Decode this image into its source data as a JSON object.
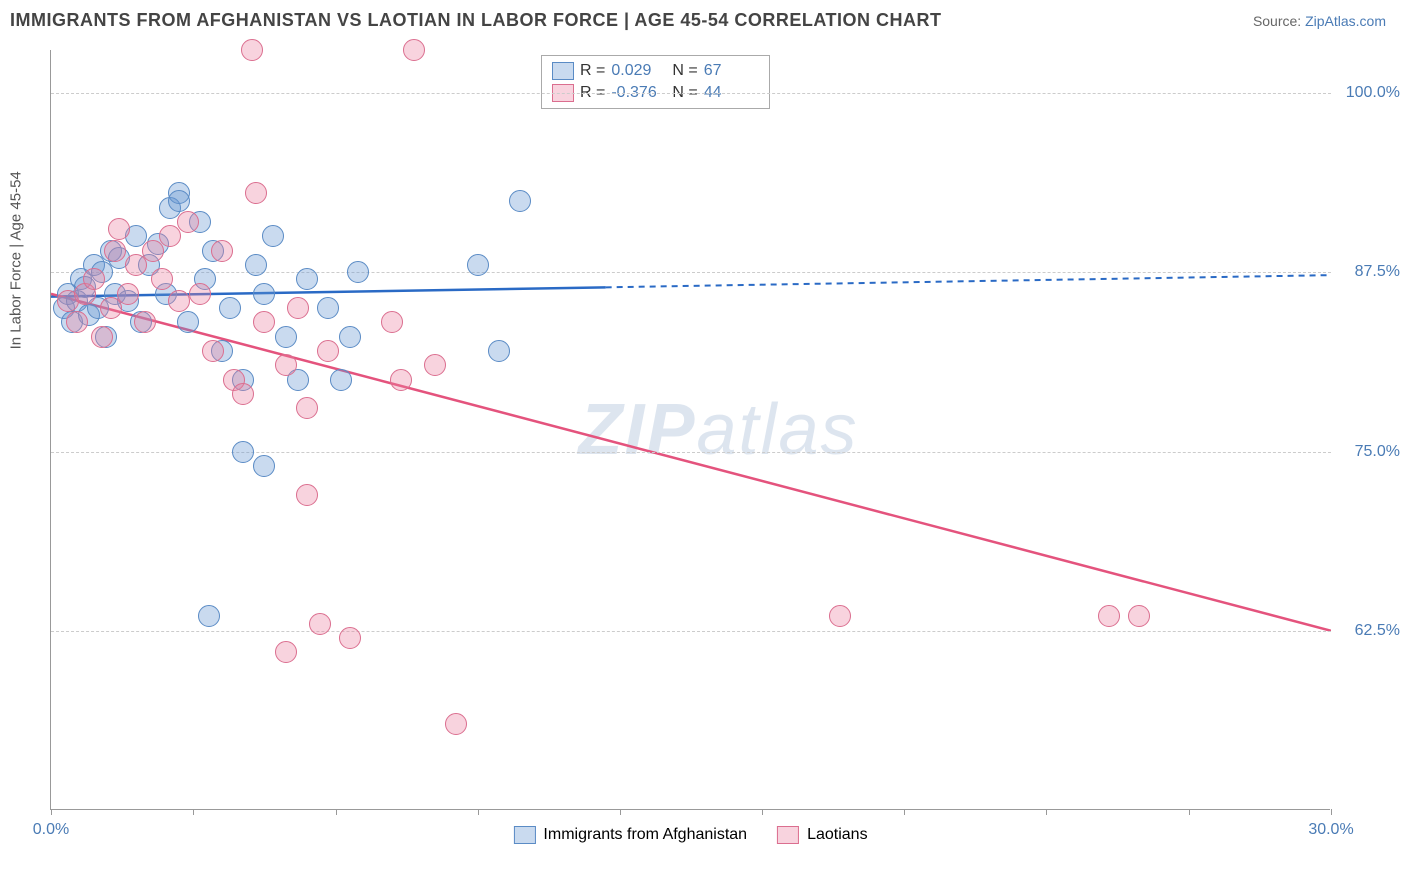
{
  "header": {
    "title": "IMMIGRANTS FROM AFGHANISTAN VS LAOTIAN IN LABOR FORCE | AGE 45-54 CORRELATION CHART",
    "source_prefix": "Source: ",
    "source_link": "ZipAtlas.com"
  },
  "chart": {
    "type": "scatter",
    "xlabel": "",
    "ylabel": "In Labor Force | Age 45-54",
    "watermark_1": "ZIP",
    "watermark_2": "atlas",
    "xlim": [
      0,
      30
    ],
    "ylim": [
      50,
      103
    ],
    "x_ticks": [
      0,
      3.33,
      6.67,
      10,
      13.33,
      16.67,
      20,
      23.33,
      26.67,
      30
    ],
    "x_tick_labels_shown": {
      "0": "0.0%",
      "30": "30.0%"
    },
    "y_gridlines": [
      62.5,
      75,
      87.5,
      100
    ],
    "y_tick_labels": {
      "62.5": "62.5%",
      "75": "75.0%",
      "87.5": "87.5%",
      "100": "100.0%"
    },
    "background_color": "#ffffff",
    "grid_color": "#cccccc",
    "axis_color": "#999999",
    "series": [
      {
        "name": "Immigrants from Afghanistan",
        "fill_color": "rgba(100,150,210,0.35)",
        "stroke_color": "#5a8bc5",
        "line_color": "#2a6ac5",
        "marker_radius": 11,
        "R": "0.029",
        "N": "67",
        "trend": {
          "x1": 0,
          "y1": 85.8,
          "x_solid_end": 13,
          "x2": 30,
          "y2": 87.3
        },
        "points": [
          [
            0.3,
            85
          ],
          [
            0.4,
            86
          ],
          [
            0.5,
            84
          ],
          [
            0.6,
            85.5
          ],
          [
            0.7,
            87
          ],
          [
            0.8,
            86.5
          ],
          [
            0.9,
            84.5
          ],
          [
            1.0,
            88
          ],
          [
            1.1,
            85
          ],
          [
            1.2,
            87.5
          ],
          [
            1.3,
            83
          ],
          [
            1.4,
            89
          ],
          [
            1.5,
            86
          ],
          [
            1.6,
            88.5
          ],
          [
            1.8,
            85.5
          ],
          [
            2.0,
            90
          ],
          [
            2.1,
            84
          ],
          [
            2.3,
            88
          ],
          [
            2.5,
            89.5
          ],
          [
            2.7,
            86
          ],
          [
            2.8,
            92
          ],
          [
            3.0,
            93
          ],
          [
            3.0,
            92.5
          ],
          [
            3.2,
            84
          ],
          [
            3.5,
            91
          ],
          [
            3.6,
            87
          ],
          [
            3.7,
            63.5
          ],
          [
            3.8,
            89
          ],
          [
            4.0,
            82
          ],
          [
            4.2,
            85
          ],
          [
            4.5,
            80
          ],
          [
            4.5,
            75
          ],
          [
            4.8,
            88
          ],
          [
            5.0,
            86
          ],
          [
            5.0,
            74
          ],
          [
            5.2,
            90
          ],
          [
            5.5,
            83
          ],
          [
            5.8,
            80
          ],
          [
            6.0,
            87
          ],
          [
            6.5,
            85
          ],
          [
            6.8,
            80
          ],
          [
            7.0,
            83
          ],
          [
            7.2,
            87.5
          ],
          [
            10.0,
            88
          ],
          [
            10.5,
            82
          ],
          [
            11.0,
            92.5
          ]
        ]
      },
      {
        "name": "Laotians",
        "fill_color": "rgba(235,130,160,0.35)",
        "stroke_color": "#db6e8f",
        "line_color": "#e4537d",
        "marker_radius": 11,
        "R": "-0.376",
        "N": "44",
        "trend": {
          "x1": 0,
          "y1": 86.0,
          "x_solid_end": 30,
          "x2": 30,
          "y2": 62.5
        },
        "points": [
          [
            0.4,
            85.5
          ],
          [
            0.6,
            84
          ],
          [
            0.8,
            86
          ],
          [
            1.0,
            87
          ],
          [
            1.2,
            83
          ],
          [
            1.4,
            85
          ],
          [
            1.5,
            89
          ],
          [
            1.6,
            90.5
          ],
          [
            1.8,
            86
          ],
          [
            2.0,
            88
          ],
          [
            2.2,
            84
          ],
          [
            2.4,
            89
          ],
          [
            2.6,
            87
          ],
          [
            2.8,
            90
          ],
          [
            3.0,
            85.5
          ],
          [
            3.2,
            91
          ],
          [
            3.5,
            86
          ],
          [
            3.8,
            82
          ],
          [
            4.0,
            89
          ],
          [
            4.3,
            80
          ],
          [
            4.5,
            79
          ],
          [
            4.7,
            103
          ],
          [
            4.8,
            93
          ],
          [
            5.0,
            84
          ],
          [
            5.5,
            81
          ],
          [
            5.5,
            61
          ],
          [
            5.8,
            85
          ],
          [
            6.0,
            78
          ],
          [
            6.0,
            72
          ],
          [
            6.3,
            63
          ],
          [
            6.5,
            82
          ],
          [
            7.0,
            62
          ],
          [
            8.0,
            84
          ],
          [
            8.2,
            80
          ],
          [
            8.5,
            103
          ],
          [
            9.0,
            81
          ],
          [
            9.5,
            56
          ],
          [
            18.5,
            63.5
          ],
          [
            24.8,
            63.5
          ],
          [
            25.5,
            63.5
          ]
        ]
      }
    ],
    "legend_top": {
      "rows": [
        {
          "swatch_fill": "rgba(100,150,210,0.35)",
          "swatch_border": "#5a8bc5",
          "r_label": "R =",
          "r_val": "0.029",
          "n_label": "N =",
          "n_val": "67"
        },
        {
          "swatch_fill": "rgba(235,130,160,0.35)",
          "swatch_border": "#db6e8f",
          "r_label": "R =",
          "r_val": "-0.376",
          "n_label": "N =",
          "n_val": "44"
        }
      ]
    },
    "legend_bottom": [
      {
        "swatch_fill": "rgba(100,150,210,0.35)",
        "swatch_border": "#5a8bc5",
        "label": "Immigrants from Afghanistan"
      },
      {
        "swatch_fill": "rgba(235,130,160,0.35)",
        "swatch_border": "#db6e8f",
        "label": "Laotians"
      }
    ]
  }
}
